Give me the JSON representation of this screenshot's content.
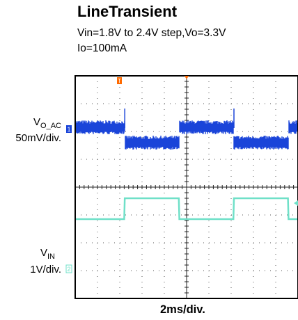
{
  "title": "LineTransient",
  "subtitle_line1": "Vin=1.8V to 2.4V step,Vo=3.3V",
  "subtitle_line2": "Io=100mA",
  "chart_data": {
    "type": "line",
    "xlabel": "2ms/div.",
    "x_unit": "ms",
    "xlim": [
      0,
      20
    ],
    "series": [
      {
        "name_main": "V",
        "name_sub": "O_AC",
        "scale": "50mV/div.",
        "channel_marker": "1",
        "color": "#1a44d9",
        "trace": "noisy band; dips about 0.5 div when VIN steps up, recovers when VIN steps down",
        "x": [
          0,
          4.4,
          4.45,
          9.3,
          9.35,
          14.2,
          14.25,
          19.1,
          19.15,
          20
        ],
        "y_div": [
          0.0,
          0.0,
          -0.55,
          -0.55,
          0.0,
          0.0,
          -0.55,
          -0.55,
          0.0,
          0.0
        ]
      },
      {
        "name_main": "V",
        "name_sub": "IN",
        "scale": "1V/div.",
        "channel_marker": "2",
        "color": "#6fe0c8",
        "x": [
          0,
          4.4,
          4.45,
          9.3,
          9.35,
          14.2,
          14.25,
          19.1,
          19.15,
          20
        ],
        "y_V": [
          1.8,
          1.8,
          2.4,
          2.4,
          1.8,
          1.8,
          2.4,
          2.4,
          1.8,
          1.8
        ]
      }
    ],
    "trigger_marker": "T",
    "grid": true
  }
}
